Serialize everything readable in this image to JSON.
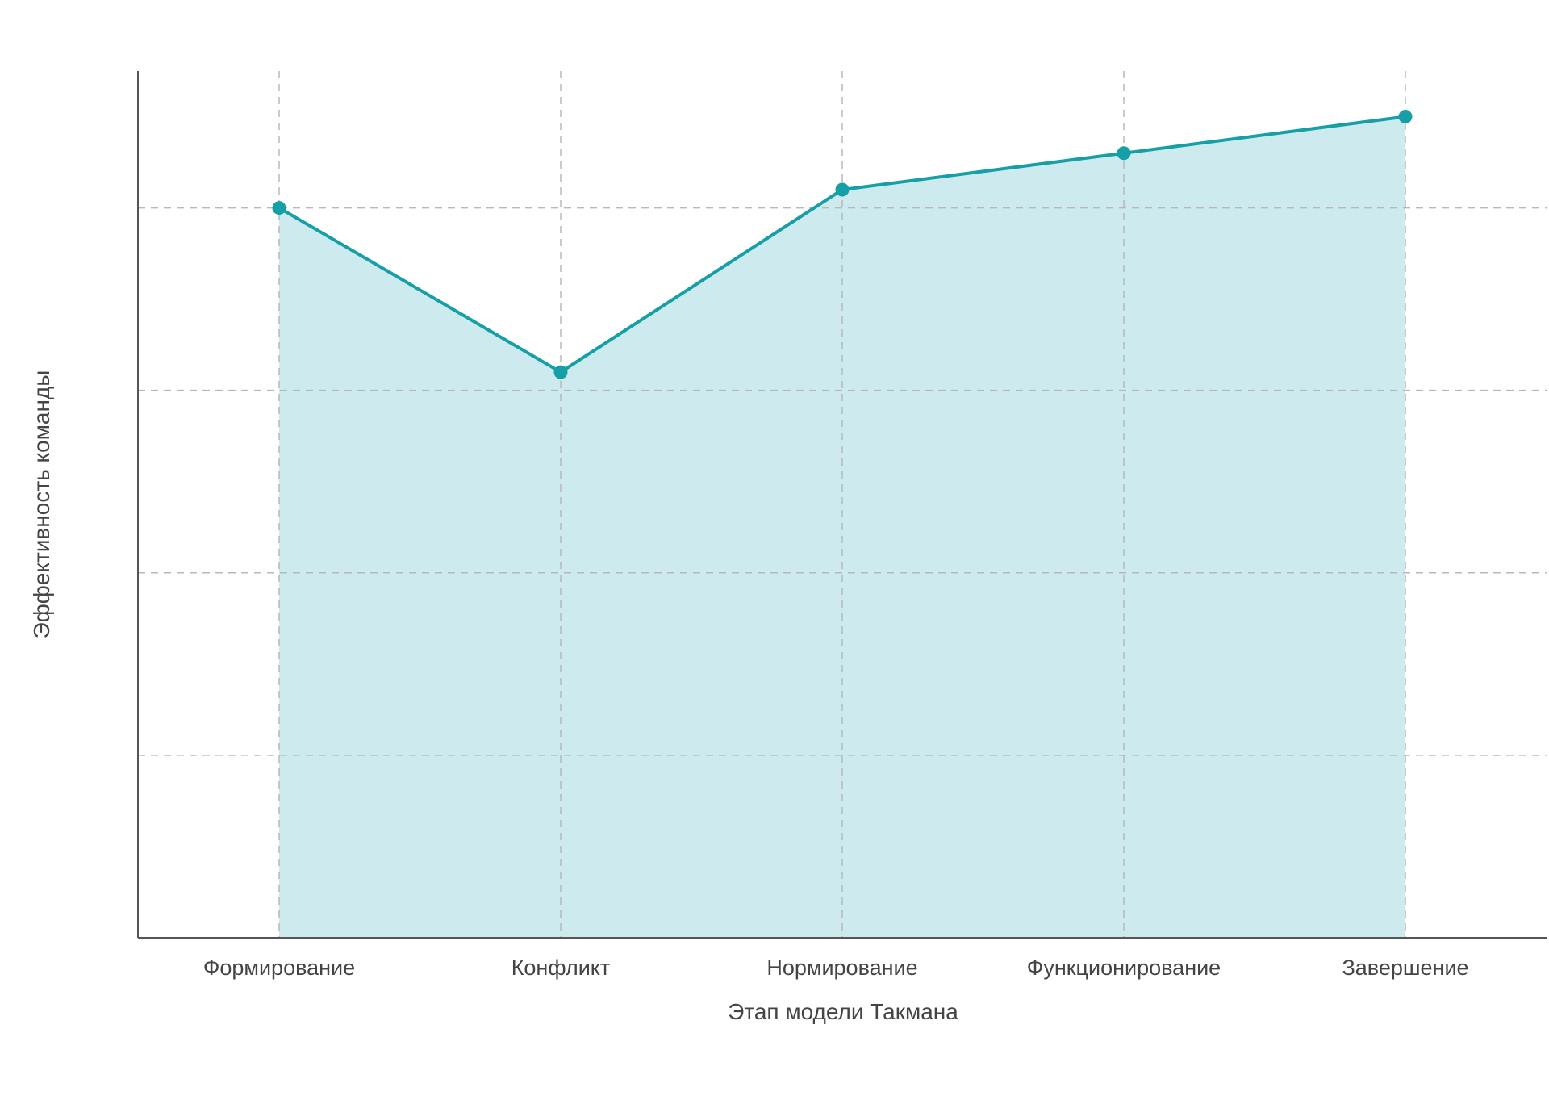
{
  "chart_data": {
    "type": "area",
    "title": "",
    "xlabel": "Этап модели Такмана",
    "ylabel": "Эффективность команды",
    "categories": [
      "Формирование",
      "Конфликт",
      "Нормирование",
      "Функционирование",
      "Завершение"
    ],
    "series": [
      {
        "values": [
          80,
          62,
          82,
          86,
          90
        ]
      }
    ],
    "ylim": [
      0,
      95
    ],
    "y_gridlines": [
      20,
      40,
      60,
      80
    ],
    "y_tick_labels_shown": false,
    "grid": true,
    "grid_style": "dashed",
    "legend": "none",
    "colors": {
      "line": "#169fa6",
      "fill": "#cdebee",
      "grid": "#b8b8b8",
      "axis": "#555555",
      "text": "#444444"
    }
  }
}
